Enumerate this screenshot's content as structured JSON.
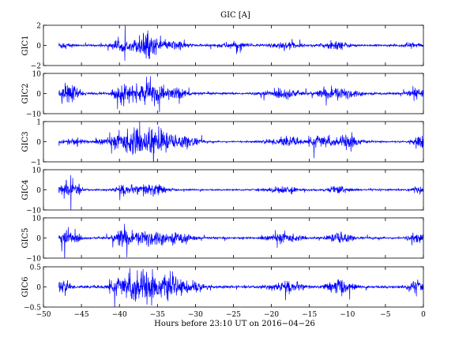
{
  "chart_data": {
    "type": "line",
    "title": "GIC [A]",
    "xlabel": "Hours before  23:10 UT on 2016−04−26",
    "xlim": [
      -50,
      0
    ],
    "xticks": [
      "−50",
      "−45",
      "−40",
      "−35",
      "−30",
      "−25",
      "−20",
      "−15",
      "−10",
      "−5",
      "0"
    ],
    "x_values": [
      -50,
      -45,
      -40,
      -35,
      -30,
      -25,
      -20,
      -15,
      -10,
      -5,
      0
    ],
    "line_color": "#0000ff",
    "data_x_range": [
      -48,
      0
    ],
    "panels": [
      {
        "ylabel": "GIC1",
        "ylim": [
          -2,
          2
        ],
        "yticks": [
          "2",
          "0",
          "−2"
        ],
        "ytick_values": [
          2,
          0,
          -2
        ],
        "baseline": 0,
        "noise": 0.08,
        "bursts": [
          {
            "center": -47.5,
            "width": 1.0,
            "amp": 0.25
          },
          {
            "center": -40.0,
            "width": 1.2,
            "amp": 0.4
          },
          {
            "center": -36.5,
            "width": 1.6,
            "amp": 1.0
          },
          {
            "center": -32.5,
            "width": 1.5,
            "amp": 0.35
          },
          {
            "center": -25.0,
            "width": 2.0,
            "amp": 0.2
          },
          {
            "center": -18.5,
            "width": 2.0,
            "amp": 0.25
          },
          {
            "center": -11.5,
            "width": 1.5,
            "amp": 0.35
          },
          {
            "center": -1.5,
            "width": 1.0,
            "amp": 0.25
          }
        ]
      },
      {
        "ylabel": "GIC2",
        "ylim": [
          -10,
          10
        ],
        "yticks": [
          "10",
          "0",
          "−10"
        ],
        "ytick_values": [
          10,
          0,
          -10
        ],
        "baseline": 0,
        "noise": 0.4,
        "bursts": [
          {
            "center": -46.5,
            "width": 1.2,
            "amp": 4.0
          },
          {
            "center": -39.5,
            "width": 1.2,
            "amp": 3.5
          },
          {
            "center": -36.0,
            "width": 2.0,
            "amp": 4.5
          },
          {
            "center": -32.5,
            "width": 1.5,
            "amp": 2.0
          },
          {
            "center": -18.5,
            "width": 2.0,
            "amp": 2.0
          },
          {
            "center": -12.5,
            "width": 1.5,
            "amp": 2.2
          },
          {
            "center": -10.0,
            "width": 1.5,
            "amp": 2.0
          },
          {
            "center": -1.0,
            "width": 1.0,
            "amp": 2.0
          }
        ]
      },
      {
        "ylabel": "GIC3",
        "ylim": [
          -1,
          1
        ],
        "yticks": [
          "1",
          "0",
          "−1"
        ],
        "ytick_values": [
          1,
          0,
          -1
        ],
        "baseline": 0,
        "noise": 0.03,
        "bursts": [
          {
            "center": -46.0,
            "width": 1.5,
            "amp": 0.12
          },
          {
            "center": -38.0,
            "width": 3.5,
            "amp": 0.45
          },
          {
            "center": -34.5,
            "width": 2.0,
            "amp": 0.35
          },
          {
            "center": -31.0,
            "width": 1.5,
            "amp": 0.2
          },
          {
            "center": -18.0,
            "width": 2.5,
            "amp": 0.15
          },
          {
            "center": -13.5,
            "width": 1.5,
            "amp": 0.25
          },
          {
            "center": -10.0,
            "width": 1.5,
            "amp": 0.3
          },
          {
            "center": -0.5,
            "width": 0.8,
            "amp": 0.3
          }
        ]
      },
      {
        "ylabel": "GIC4",
        "ylim": [
          -10,
          10
        ],
        "yticks": [
          "10",
          "0",
          "−10"
        ],
        "ytick_values": [
          10,
          0,
          -10
        ],
        "baseline": 0,
        "noise": 0.3,
        "bursts": [
          {
            "center": -46.5,
            "width": 1.2,
            "amp": 4.0
          },
          {
            "center": -39.5,
            "width": 1.2,
            "amp": 1.8
          },
          {
            "center": -36.0,
            "width": 2.0,
            "amp": 2.5
          },
          {
            "center": -18.5,
            "width": 2.0,
            "amp": 1.2
          },
          {
            "center": -11.0,
            "width": 1.5,
            "amp": 1.5
          },
          {
            "center": -1.0,
            "width": 1.0,
            "amp": 1.2
          }
        ]
      },
      {
        "ylabel": "GIC5",
        "ylim": [
          -10,
          10
        ],
        "yticks": [
          "10",
          "0",
          "−10"
        ],
        "ytick_values": [
          10,
          0,
          -10
        ],
        "baseline": 0,
        "noise": 0.4,
        "bursts": [
          {
            "center": -46.5,
            "width": 1.2,
            "amp": 3.5
          },
          {
            "center": -39.5,
            "width": 1.2,
            "amp": 4.0
          },
          {
            "center": -36.0,
            "width": 2.0,
            "amp": 3.5
          },
          {
            "center": -32.0,
            "width": 1.5,
            "amp": 2.0
          },
          {
            "center": -18.5,
            "width": 2.0,
            "amp": 1.8
          },
          {
            "center": -11.0,
            "width": 1.5,
            "amp": 2.2
          },
          {
            "center": -1.0,
            "width": 1.0,
            "amp": 2.0
          }
        ]
      },
      {
        "ylabel": "GIC6",
        "ylim": [
          -0.5,
          0.5
        ],
        "yticks": [
          "0.5",
          "0",
          "−0.5"
        ],
        "ytick_values": [
          0.5,
          0,
          -0.5
        ],
        "baseline": 0,
        "noise": 0.025,
        "bursts": [
          {
            "center": -47.5,
            "width": 1.0,
            "amp": 0.12
          },
          {
            "center": -40.0,
            "width": 1.5,
            "amp": 0.15
          },
          {
            "center": -37.0,
            "width": 2.0,
            "amp": 0.35
          },
          {
            "center": -33.5,
            "width": 1.5,
            "amp": 0.18
          },
          {
            "center": -30.5,
            "width": 1.5,
            "amp": 0.12
          },
          {
            "center": -18.0,
            "width": 2.0,
            "amp": 0.1
          },
          {
            "center": -11.0,
            "width": 1.5,
            "amp": 0.15
          },
          {
            "center": -1.0,
            "width": 1.0,
            "amp": 0.12
          }
        ]
      }
    ]
  }
}
